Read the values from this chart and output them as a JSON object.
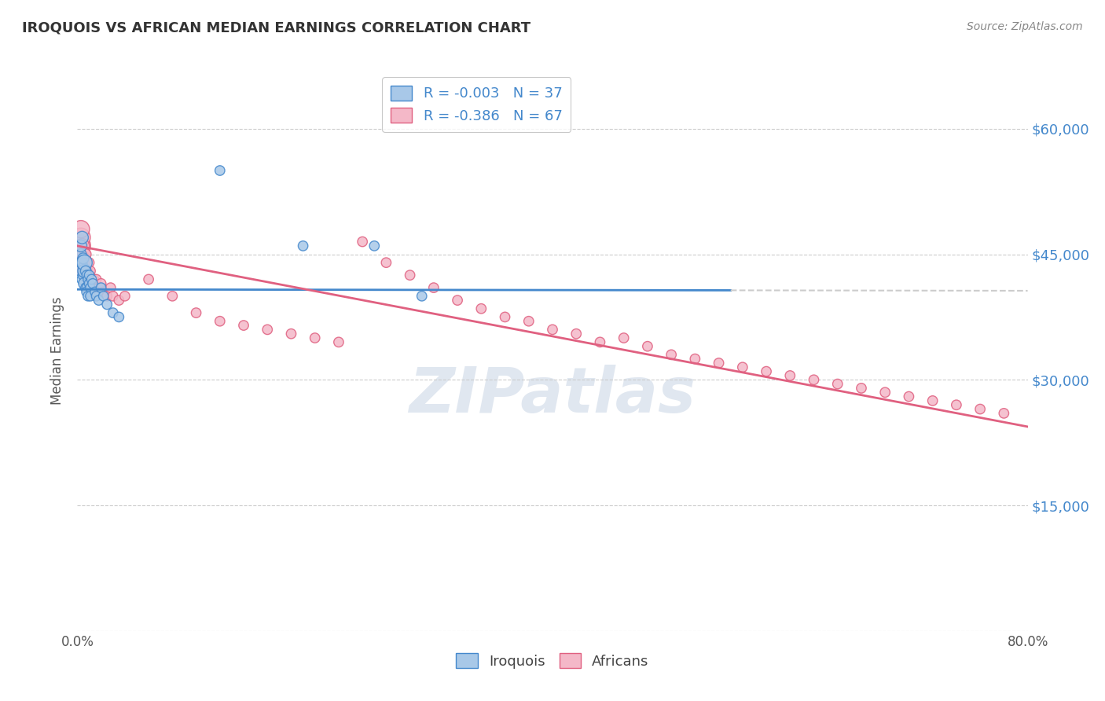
{
  "title": "IROQUOIS VS AFRICAN MEDIAN EARNINGS CORRELATION CHART",
  "source": "Source: ZipAtlas.com",
  "ylabel": "Median Earnings",
  "xlim": [
    0.0,
    0.8
  ],
  "ylim": [
    0,
    67000
  ],
  "yticks": [
    0,
    15000,
    30000,
    45000,
    60000
  ],
  "ytick_labels": [
    "",
    "$15,000",
    "$30,000",
    "$45,000",
    "$60,000"
  ],
  "legend_R1": "R = -0.003",
  "legend_N1": "N = 37",
  "legend_R2": "R = -0.386",
  "legend_N2": "N = 67",
  "blue_color": "#a8c8e8",
  "pink_color": "#f4b8c8",
  "trend_blue": "#4488cc",
  "trend_pink": "#e06080",
  "background_color": "#ffffff",
  "grid_color": "#cccccc",
  "watermark": "ZIPatlas",
  "watermark_color": "#c8d4e4",
  "iroquois_x": [
    0.002,
    0.003,
    0.003,
    0.004,
    0.004,
    0.004,
    0.005,
    0.005,
    0.005,
    0.006,
    0.006,
    0.006,
    0.007,
    0.007,
    0.008,
    0.008,
    0.008,
    0.009,
    0.009,
    0.01,
    0.01,
    0.011,
    0.011,
    0.012,
    0.013,
    0.015,
    0.016,
    0.018,
    0.02,
    0.022,
    0.025,
    0.03,
    0.035,
    0.12,
    0.19,
    0.25,
    0.29
  ],
  "iroquois_y": [
    43000,
    45000,
    46000,
    42000,
    44000,
    47000,
    43500,
    44500,
    42500,
    43000,
    44000,
    41500,
    43000,
    41000,
    42500,
    41000,
    40500,
    42000,
    40000,
    41500,
    42500,
    41000,
    40000,
    42000,
    41500,
    40500,
    40000,
    39500,
    41000,
    40000,
    39000,
    38000,
    37500,
    55000,
    46000,
    46000,
    40000
  ],
  "iroquois_sizes": [
    80,
    100,
    120,
    90,
    80,
    130,
    80,
    100,
    90,
    150,
    200,
    120,
    90,
    80,
    80,
    80,
    90,
    80,
    80,
    80,
    80,
    80,
    80,
    80,
    80,
    80,
    80,
    80,
    80,
    80,
    80,
    80,
    80,
    80,
    80,
    80,
    80
  ],
  "african_x": [
    0.002,
    0.003,
    0.003,
    0.004,
    0.004,
    0.005,
    0.005,
    0.006,
    0.006,
    0.007,
    0.007,
    0.008,
    0.008,
    0.009,
    0.01,
    0.01,
    0.011,
    0.012,
    0.013,
    0.014,
    0.015,
    0.016,
    0.018,
    0.02,
    0.022,
    0.025,
    0.028,
    0.03,
    0.035,
    0.04,
    0.06,
    0.08,
    0.1,
    0.12,
    0.14,
    0.16,
    0.18,
    0.2,
    0.22,
    0.24,
    0.26,
    0.28,
    0.3,
    0.32,
    0.34,
    0.36,
    0.38,
    0.4,
    0.42,
    0.44,
    0.46,
    0.48,
    0.5,
    0.52,
    0.54,
    0.56,
    0.58,
    0.6,
    0.62,
    0.64,
    0.66,
    0.68,
    0.7,
    0.72,
    0.74,
    0.76,
    0.78
  ],
  "african_y": [
    46000,
    47000,
    48000,
    44000,
    46000,
    45000,
    43000,
    44500,
    42500,
    45000,
    43000,
    44000,
    42000,
    43000,
    44000,
    42500,
    43000,
    42000,
    41500,
    42000,
    41000,
    42000,
    41000,
    41500,
    40500,
    40000,
    41000,
    40000,
    39500,
    40000,
    42000,
    40000,
    38000,
    37000,
    36500,
    36000,
    35500,
    35000,
    34500,
    46500,
    44000,
    42500,
    41000,
    39500,
    38500,
    37500,
    37000,
    36000,
    35500,
    34500,
    35000,
    34000,
    33000,
    32500,
    32000,
    31500,
    31000,
    30500,
    30000,
    29500,
    29000,
    28500,
    28000,
    27500,
    27000,
    26500,
    26000
  ],
  "african_sizes": [
    400,
    300,
    250,
    200,
    180,
    150,
    130,
    120,
    110,
    100,
    90,
    80,
    80,
    80,
    80,
    80,
    80,
    80,
    80,
    80,
    80,
    80,
    80,
    80,
    80,
    80,
    80,
    80,
    80,
    80,
    80,
    80,
    80,
    80,
    80,
    80,
    80,
    80,
    80,
    80,
    80,
    80,
    80,
    80,
    80,
    80,
    80,
    80,
    80,
    80,
    80,
    80,
    80,
    80,
    80,
    80,
    80,
    80,
    80,
    80,
    80,
    80,
    80,
    80,
    80,
    80,
    80
  ],
  "blue_line_solid_end": 0.55,
  "trend_blue_intercept": 40800,
  "trend_blue_slope": -200,
  "trend_pink_intercept": 46000,
  "trend_pink_slope": -27000
}
